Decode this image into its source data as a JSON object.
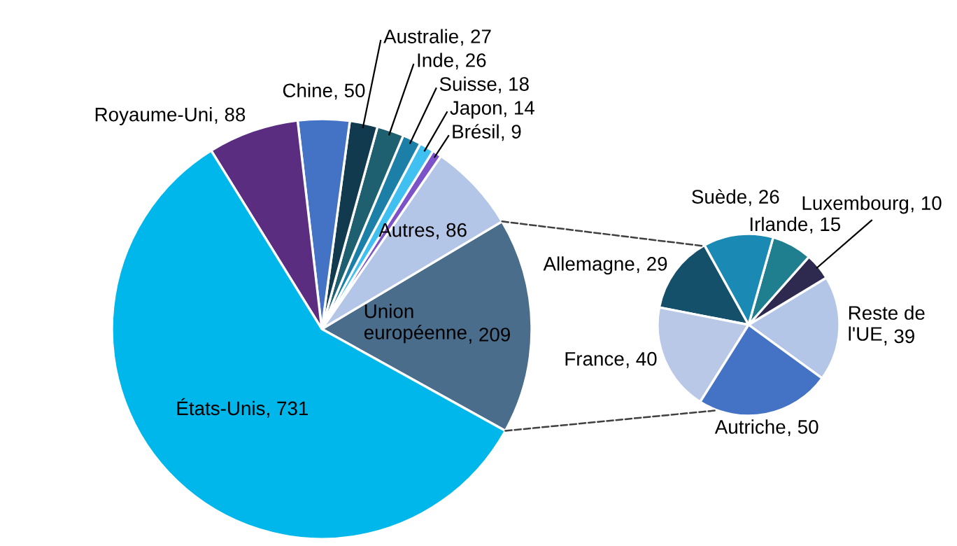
{
  "chart_data": [
    {
      "type": "pie",
      "categories": [
        "Union européenne",
        "Autres",
        "Brésil",
        "Japon",
        "Suisse",
        "Inde",
        "Australie",
        "Chine",
        "Royaume-Uni",
        "États-Unis"
      ],
      "values": [
        209,
        86,
        9,
        14,
        18,
        26,
        27,
        50,
        88,
        731
      ],
      "colors": [
        "#4a6d8c",
        "#b4c6e7",
        "#7b52c7",
        "#3fc0f0",
        "#1b7fa8",
        "#1f6070",
        "#123a4f",
        "#4472c4",
        "#5a2d80",
        "#00b7eb"
      ],
      "value_labels": [
        ", 209",
        ", 86",
        ", 9",
        ", 14",
        ", 18",
        ", 26",
        ", 27",
        ", 50",
        ", 88",
        ", 731"
      ]
    },
    {
      "type": "pie",
      "categories": [
        "Reste de l'UE",
        "Luxembourg",
        "Irlande",
        "Suède",
        "Allemagne",
        "France",
        "Autriche"
      ],
      "values": [
        39,
        10,
        15,
        26,
        29,
        40,
        50
      ],
      "colors": [
        "#b4c6e7",
        "#2e2a4f",
        "#1f7f8f",
        "#1a8ab5",
        "#14506a",
        "#b8c8e6",
        "#4472c4"
      ],
      "value_labels": [
        ", 39",
        ", 10",
        ", 15",
        ", 26",
        ", 29",
        ", 40",
        ", 50"
      ]
    }
  ]
}
